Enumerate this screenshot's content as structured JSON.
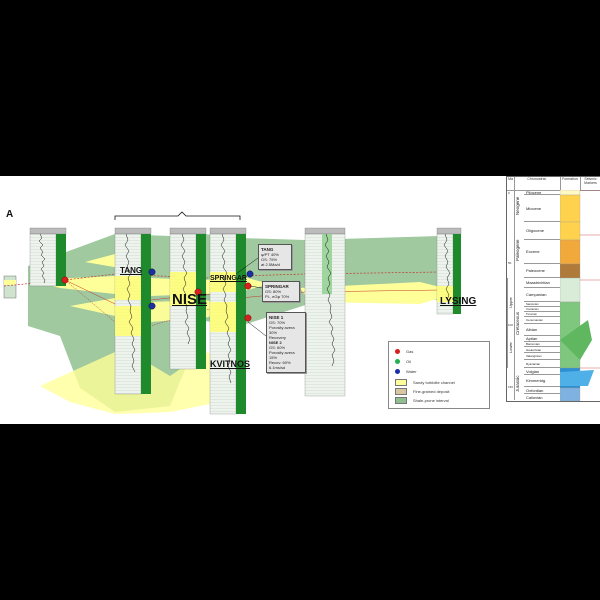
{
  "panel_label": "A",
  "well_names": {
    "tang": "TANG",
    "nise": "NISE",
    "springar": "SPRINGAR",
    "kvitnos": "KVITNOS",
    "lysing": "LYSING"
  },
  "annotations": {
    "tang": {
      "title": "TANG",
      "lines": [
        "φ/PT 40%",
        "GS: 75%",
        "at 2.5Ma/d"
      ]
    },
    "springar": {
      "title": "SPRINGAR",
      "lines": [
        "GS: 80%",
        "PL, eGφ 70%"
      ]
    },
    "nise": {
      "title": "NISE 1",
      "lines": [
        "GS: 70%",
        "Porosity avera 30%",
        "Recovery",
        "",
        "NISE 2",
        "GS: 60%",
        "Porosity avera 15%",
        "Recov: 60%",
        "6.1ms/sd"
      ]
    }
  },
  "legend": {
    "gas": "Gas",
    "oil": "Oil",
    "water": "Water",
    "sandy": "Sandy turbidite channel",
    "fine": "Fine-grained deposit",
    "shale": "Shale-prone interval",
    "colors": {
      "gas": "#d61f1f",
      "oil": "#22b14c",
      "water": "#1a2ea8",
      "sandy": "#ffff99",
      "fine": "#d9c7a3",
      "shale": "#8fbf8f"
    }
  },
  "strat_chart": {
    "headers": [
      "Ma",
      "Chronostrat.",
      "Formation",
      "Seismic Markers"
    ],
    "eras": [
      "Neogene",
      "Paleogene",
      "Cretaceous",
      "Jurassic"
    ],
    "periods": [
      "Upper",
      "Lower"
    ],
    "stages": [
      "Pliocene",
      "Miocene",
      "Oligocene",
      "Eocene",
      "Paleocene",
      "Maastrichtian",
      "Campanian",
      "Santonian",
      "Coniacian",
      "Turonian",
      "Cenomanian",
      "Albian",
      "Aptian",
      "Barremian",
      "Hauterivian",
      "Valanginian",
      "Ryazanian",
      "Volgian",
      "Kimmeridg.",
      "Oxfordian",
      "Callovian"
    ],
    "ma_ticks": [
      "0",
      "50",
      "100",
      "150"
    ]
  }
}
